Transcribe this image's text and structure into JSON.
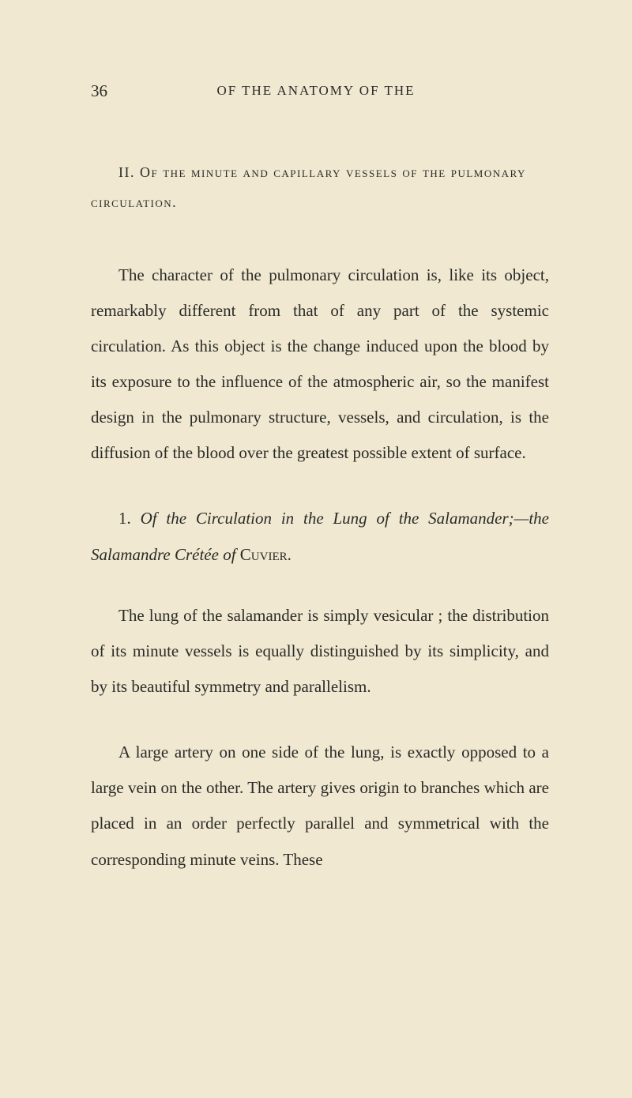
{
  "page_number": "36",
  "running_header": "OF THE ANATOMY OF THE",
  "section_heading_roman": "II.",
  "section_heading_text": " Of the minute and capillary vessels of the pulmonary circulation.",
  "paragraph1": "The character of the pulmonary circulation is, like its object, remarkably different from that of any part of the systemic circulation. As this object is the change induced upon the blood by its exposure to the influence of the atmospheric air, so the manifest design in the pulmonary structure, vessels, and circulation, is the diffusion of the blood over the greatest possible extent of surface.",
  "subsection_number": "1.",
  "subsection_title_part1": " Of the Circulation in the Lung of the Salamander;",
  "subsection_title_part2": "—the Salamandre Crétée of ",
  "subsection_author": "Cuvier",
  "subsection_period": ".",
  "paragraph2": "The lung of the salamander is simply vesicular ; the distribution of its minute vessels is equally distinguished by its simplicity, and by its beautiful symmetry and parallelism.",
  "paragraph3": "A large artery on one side of the lung, is exactly opposed to a large vein on the other. The artery gives origin to branches which are placed in an order perfectly parallel and symmetrical with the corresponding minute veins. These",
  "colors": {
    "background": "#f0e8d0",
    "text": "#2a2a28"
  },
  "typography": {
    "body_fontsize": 21,
    "header_fontsize": 17,
    "heading_fontsize": 18,
    "line_height": 2.15,
    "font_family": "Georgia, Times New Roman, serif"
  }
}
